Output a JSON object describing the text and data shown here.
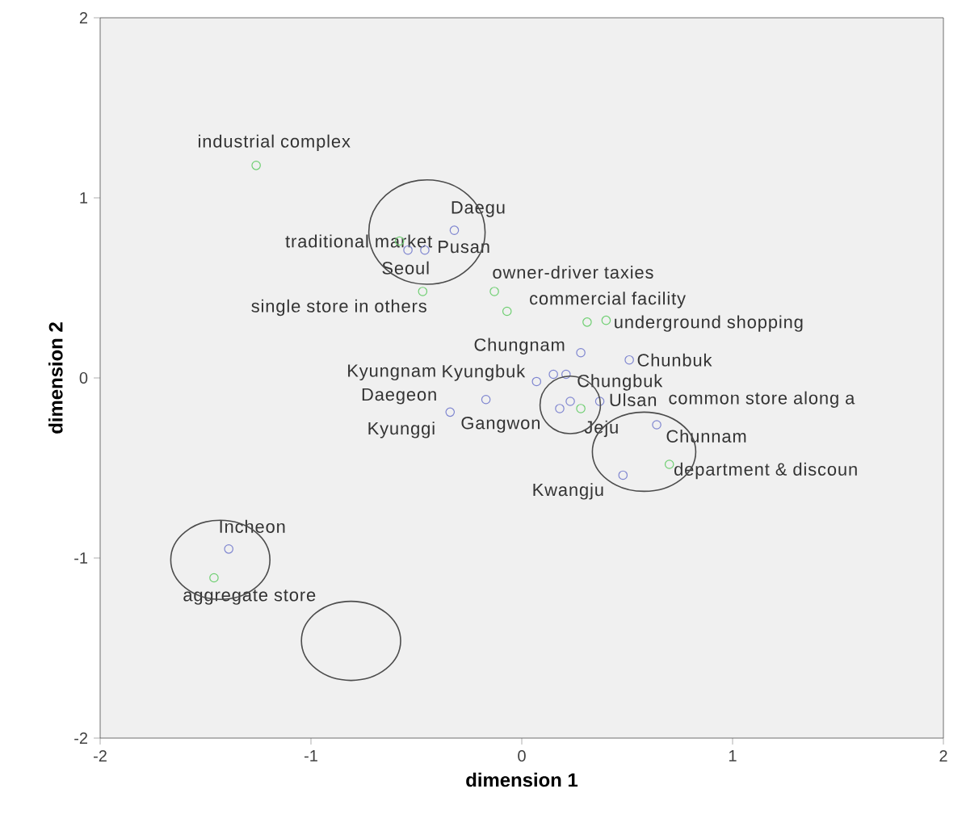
{
  "chart_data": {
    "type": "scatter",
    "xlabel": "dimension 1",
    "ylabel": "dimension 2",
    "xlim": [
      -2,
      2
    ],
    "ylim": [
      -2,
      2
    ],
    "xticks": [
      -2,
      -1,
      0,
      1,
      2
    ],
    "yticks": [
      -2,
      -1,
      0,
      1,
      2
    ],
    "grid": false,
    "marker": "circle",
    "series": [
      {
        "color": "#7f86d0",
        "x": [
          -0.32,
          -0.46,
          -0.54,
          0.28,
          0.07,
          0.15,
          0.21,
          -0.17,
          -0.34,
          0.18,
          0.23,
          0.37,
          0.51,
          0.64,
          0.48,
          -1.39
        ],
        "values": [
          0.82,
          0.71,
          0.71,
          0.14,
          -0.02,
          0.02,
          0.02,
          -0.12,
          -0.19,
          -0.17,
          -0.13,
          -0.13,
          0.1,
          -0.26,
          -0.54,
          -0.95
        ]
      },
      {
        "color": "#6fcf72",
        "x": [
          -1.26,
          -0.58,
          -0.47,
          -0.13,
          -0.07,
          0.31,
          0.4,
          0.28,
          0.7,
          -1.46
        ],
        "values": [
          1.18,
          0.76,
          0.48,
          0.48,
          0.37,
          0.31,
          0.32,
          -0.17,
          -0.48,
          -1.11
        ]
      }
    ],
    "annotations": [
      {
        "text": "Daegu",
        "x": -0.32,
        "y": 0.82
      },
      {
        "text": "Pusan",
        "x": -0.46,
        "y": 0.71
      },
      {
        "text": "Seoul",
        "x": -0.54,
        "y": 0.71
      },
      {
        "text": "Chungnam",
        "x": 0.28,
        "y": 0.14
      },
      "Kyungnam",
      {
        "text": "Kyungbuk",
        "x": 0.15,
        "y": 0.02
      },
      {
        "text": "Chungbuk",
        "x": 0.21,
        "y": 0.02
      },
      {
        "text": "Daegeon",
        "x": -0.17,
        "y": -0.12
      },
      {
        "text": "Kyunggi",
        "x": -0.34,
        "y": -0.19
      },
      {
        "text": "Gangwon",
        "x": 0.18,
        "y": -0.17
      },
      {
        "text": "Jeju",
        "x": 0.23,
        "y": -0.13
      },
      {
        "text": "Ulsan",
        "x": 0.37,
        "y": -0.13
      },
      {
        "text": "Chunbuk",
        "x": 0.51,
        "y": 0.1
      },
      {
        "text": "Chunnam",
        "x": 0.64,
        "y": -0.26
      },
      {
        "text": "Kwangju",
        "x": 0.48,
        "y": -0.54
      },
      {
        "text": "Incheon",
        "x": -1.39,
        "y": -0.95
      },
      {
        "text": "industrial complex",
        "x": -1.26,
        "y": 1.18
      },
      {
        "text": "traditional market",
        "x": -0.58,
        "y": 0.76
      },
      {
        "text": "single store in others",
        "x": -0.47,
        "y": 0.48
      },
      {
        "text": "owner-driver taxies",
        "x": -0.13,
        "y": 0.48
      },
      {
        "text": "commercial facility",
        "x": -0.07,
        "y": 0.37
      },
      {
        "text": "underground shopping",
        "x": 0.4,
        "y": 0.32
      },
      "common store along a",
      {
        "text": "department & discoun",
        "x": 0.7,
        "y": -0.48
      },
      {
        "text": "aggregate store",
        "x": -1.46,
        "y": -1.11
      }
    ]
  }
}
